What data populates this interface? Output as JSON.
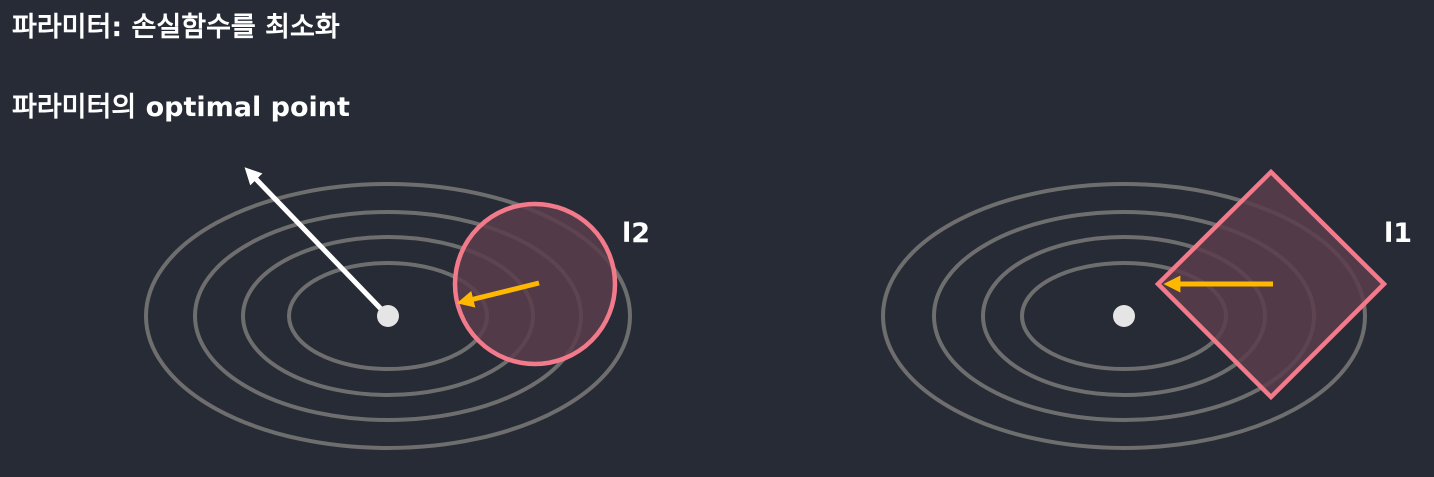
{
  "header": {
    "title": "파라미터: 손실함수를 최소화",
    "subtitle": "파라미터의 optimal point"
  },
  "panels": [
    {
      "label": "l2",
      "constraint_shape": "circle"
    },
    {
      "label": "l1",
      "constraint_shape": "diamond"
    }
  ],
  "colors": {
    "background": "#272b36",
    "contour": "#6e6e6e",
    "constraint_stroke": "#f27a8a",
    "constraint_fill": "#5c3d4b",
    "gradient_arrow": "#ffb800",
    "loss_arrow": "#ffffff",
    "optimum": "#e5e5e5",
    "text": "#ffffff"
  }
}
